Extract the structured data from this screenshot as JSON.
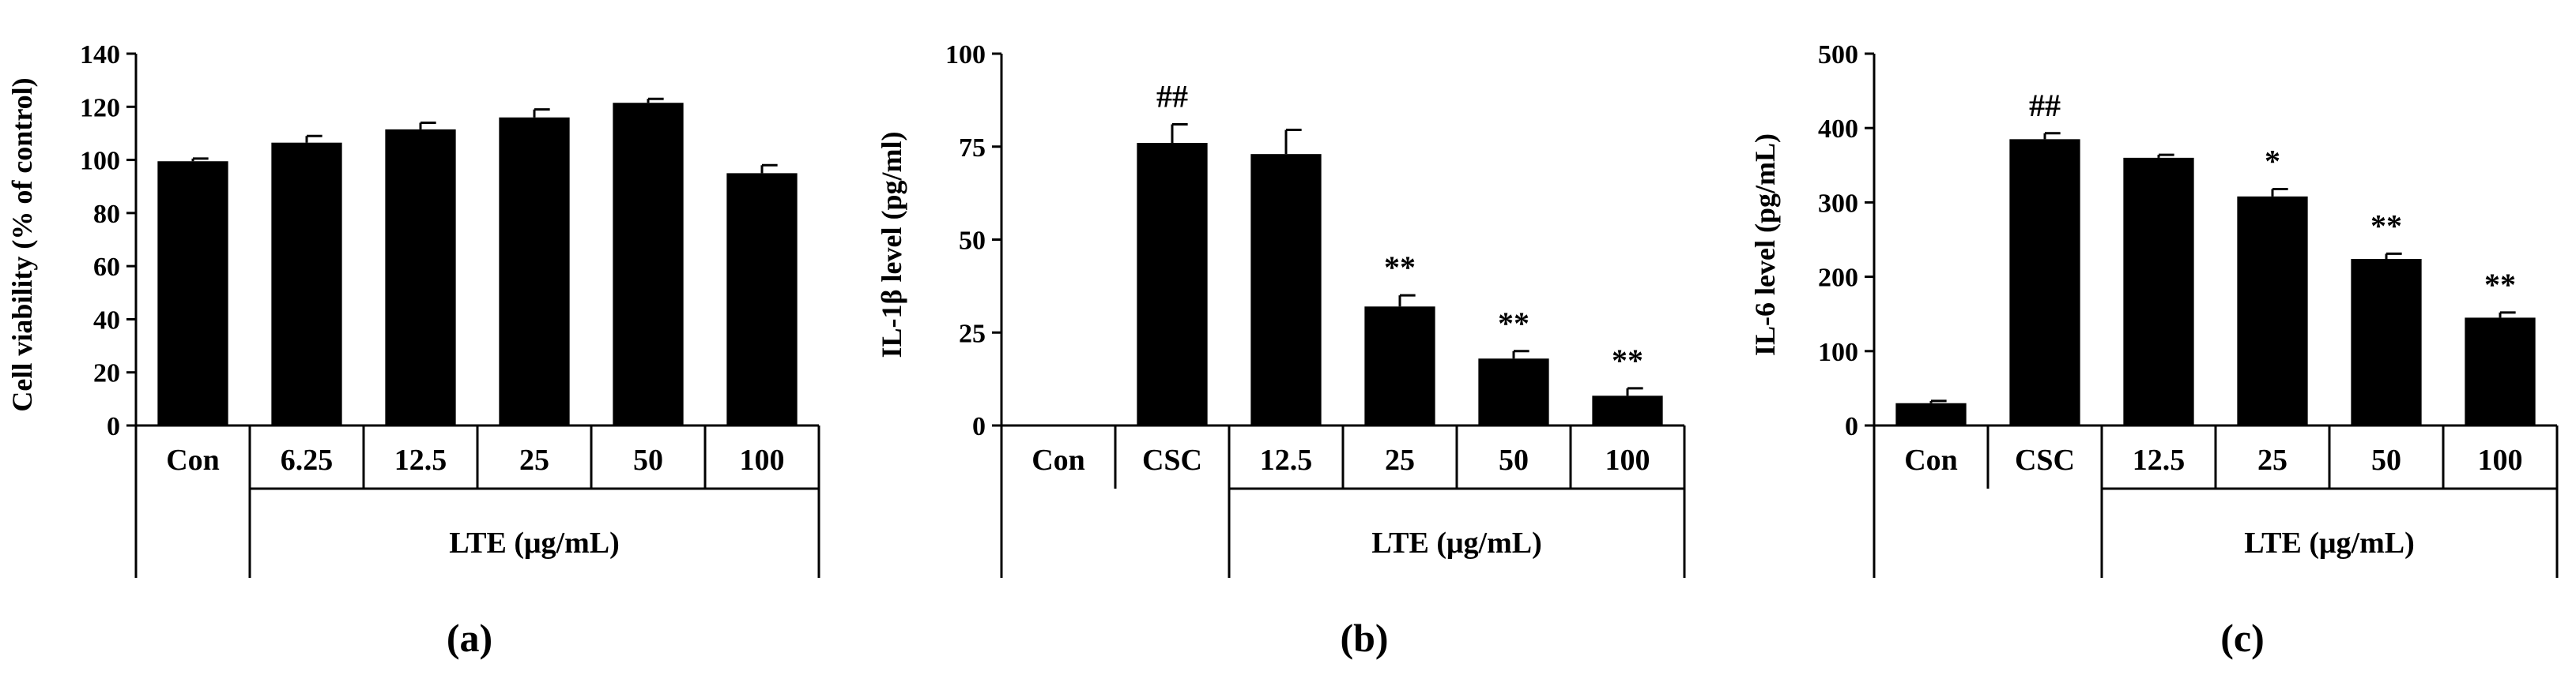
{
  "chart_data": [
    {
      "type": "bar",
      "panel_label": "(a)",
      "ylabel": "Cell viability (% of control)",
      "ylim": [
        0,
        140
      ],
      "yticks": [
        "0",
        "20",
        "40",
        "60",
        "80",
        "100",
        "120",
        "140"
      ],
      "categories": [
        "Con",
        "6.25",
        "12.5",
        "25",
        "50",
        "100"
      ],
      "values": [
        99.5,
        106.5,
        111.5,
        116,
        121.5,
        95
      ],
      "errors": [
        1,
        2.5,
        2.5,
        3,
        1.5,
        3
      ],
      "significance": [
        "",
        "",
        "",
        "",
        "",
        ""
      ],
      "group_label": "LTE (μg/mL)",
      "group_start": 1
    },
    {
      "type": "bar",
      "panel_label": "(b)",
      "ylabel": "IL-1β level (pg/ml)",
      "ylim": [
        0,
        100
      ],
      "yticks": [
        "0",
        "25",
        "50",
        "75",
        "100"
      ],
      "categories": [
        "Con",
        "CSC",
        "12.5",
        "25",
        "50",
        "100"
      ],
      "values": [
        0,
        76,
        73,
        32,
        18,
        8
      ],
      "errors": [
        0,
        5,
        6.5,
        3,
        2,
        2
      ],
      "significance": [
        "",
        "##",
        "",
        "**",
        "**",
        "**"
      ],
      "group_label": "LTE (μg/mL)",
      "group_start": 2
    },
    {
      "type": "bar",
      "panel_label": "(c)",
      "ylabel": "IL-6 level (pg/mL)",
      "ylim": [
        0,
        500
      ],
      "yticks": [
        "0",
        "100",
        "200",
        "300",
        "400",
        "500"
      ],
      "categories": [
        "Con",
        "CSC",
        "12.5",
        "25",
        "50",
        "100"
      ],
      "values": [
        30,
        385,
        360,
        308,
        224,
        145
      ],
      "errors": [
        3,
        8,
        4,
        10,
        7,
        7
      ],
      "significance": [
        "",
        "##",
        "",
        "*",
        "**",
        "**"
      ],
      "group_label": "LTE (μg/mL)",
      "group_start": 2
    }
  ]
}
